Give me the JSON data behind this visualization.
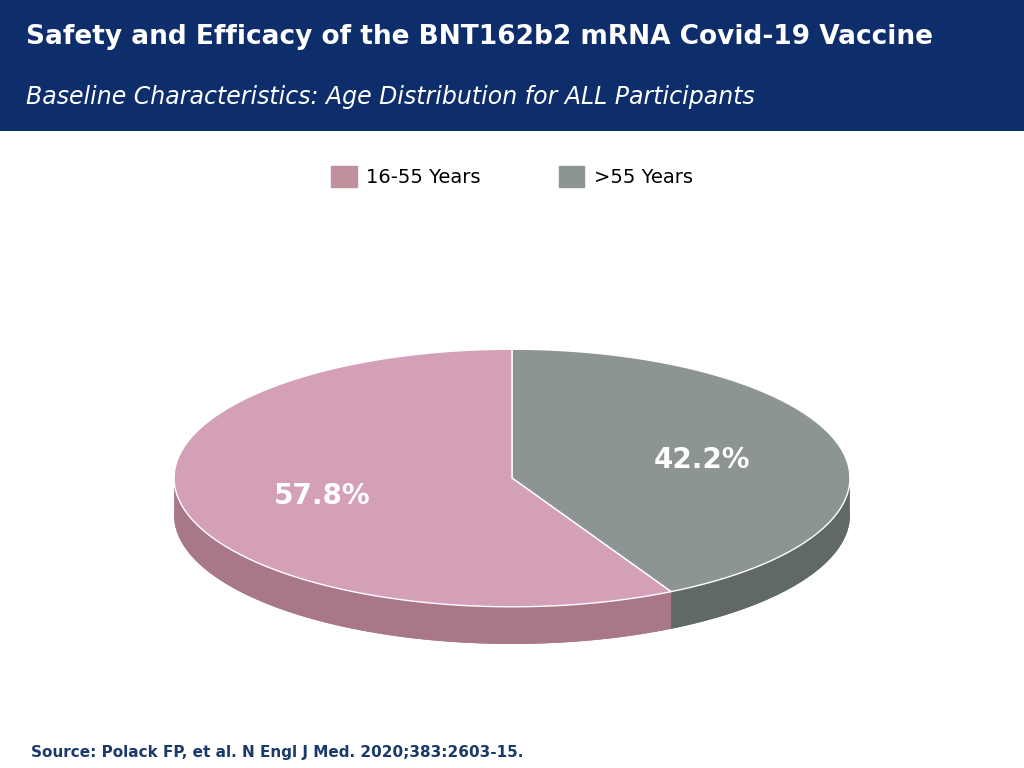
{
  "title_line1": "Safety and Efficacy of the BNT162b2 mRNA Covid-19 Vaccine",
  "title_line2": "Baseline Characteristics: Age Distribution for ALL Participants",
  "header_bg_color_top": "#0d2d6b",
  "header_bg_color_bot": "#1a4a8a",
  "slices": [
    57.8,
    42.2
  ],
  "labels": [
    "16-55 Years",
    ">55 Years"
  ],
  "slice_colors_top": [
    "#d4a0b8",
    "#8c9494"
  ],
  "slice_colors_side": [
    "#a87888",
    "#606868"
  ],
  "text_color_inside": "#ffffff",
  "pct_labels": [
    "57.8%",
    "42.2%"
  ],
  "source_text": "Source: Polack FP, et al. N Engl J Med. 2020;383:2603-15.",
  "source_color": "#1a3a6b",
  "bg_color": "#ffffff",
  "legend_colors": [
    "#c0909c",
    "#8c9494"
  ]
}
